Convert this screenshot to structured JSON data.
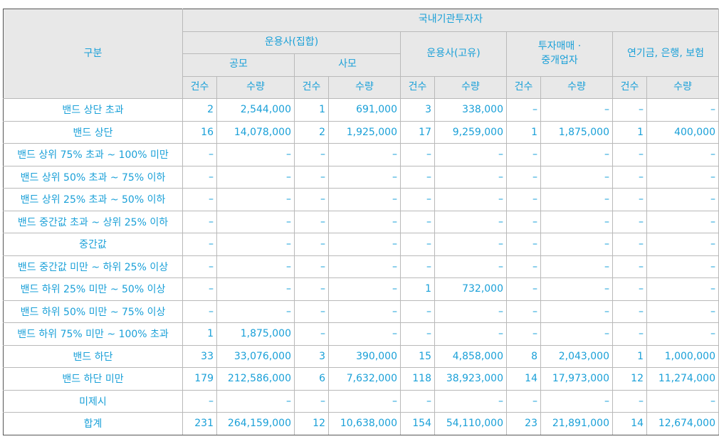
{
  "header": {
    "category": "구분",
    "institution": "국내기관투자자",
    "groups": [
      {
        "label": "운용사(집합)",
        "subs": [
          "공모",
          "사모"
        ]
      },
      {
        "label": "운용사(고유)"
      },
      {
        "label_line1": "투자매매 ·",
        "label_line2": "중개업자"
      },
      {
        "label": "연기금, 은행, 보험"
      }
    ],
    "count_label": "건수",
    "qty_label": "수량"
  },
  "rows": [
    {
      "label": "밴드 상단 초과",
      "values": [
        "2",
        "2,544,000",
        "1",
        "691,000",
        "3",
        "338,000",
        "–",
        "–",
        "–",
        "–"
      ]
    },
    {
      "label": "밴드 상단",
      "values": [
        "16",
        "14,078,000",
        "2",
        "1,925,000",
        "17",
        "9,259,000",
        "1",
        "1,875,000",
        "1",
        "400,000"
      ]
    },
    {
      "label": "밴드 상위 75% 초과 ~ 100% 미만",
      "values": [
        "–",
        "–",
        "–",
        "–",
        "–",
        "–",
        "–",
        "–",
        "–",
        "–"
      ]
    },
    {
      "label": "밴드 상위 50% 초과 ~ 75% 이하",
      "values": [
        "–",
        "–",
        "–",
        "–",
        "–",
        "–",
        "–",
        "–",
        "–",
        "–"
      ]
    },
    {
      "label": "밴드 상위 25% 초과 ~ 50% 이하",
      "values": [
        "–",
        "–",
        "–",
        "–",
        "–",
        "–",
        "–",
        "–",
        "–",
        "–"
      ]
    },
    {
      "label": "밴드 중간값 초과 ~ 상위 25% 이하",
      "values": [
        "–",
        "–",
        "–",
        "–",
        "–",
        "–",
        "–",
        "–",
        "–",
        "–"
      ]
    },
    {
      "label": "중간값",
      "values": [
        "–",
        "–",
        "–",
        "–",
        "–",
        "–",
        "–",
        "–",
        "–",
        "–"
      ]
    },
    {
      "label": "밴드 중간값 미만 ~ 하위 25% 이상",
      "values": [
        "–",
        "–",
        "–",
        "–",
        "–",
        "–",
        "–",
        "–",
        "–",
        "–"
      ]
    },
    {
      "label": "밴드 하위 25% 미만 ~ 50% 이상",
      "values": [
        "–",
        "–",
        "–",
        "–",
        "1",
        "732,000",
        "–",
        "–",
        "–",
        "–"
      ]
    },
    {
      "label": "밴드 하위 50% 미만 ~ 75% 이상",
      "values": [
        "–",
        "–",
        "–",
        "–",
        "–",
        "–",
        "–",
        "–",
        "–",
        "–"
      ]
    },
    {
      "label": "밴드 하위 75% 미만 ~ 100% 초과",
      "values": [
        "1",
        "1,875,000",
        "–",
        "–",
        "–",
        "–",
        "–",
        "–",
        "–",
        "–"
      ]
    },
    {
      "label": "밴드 하단",
      "values": [
        "33",
        "33,076,000",
        "3",
        "390,000",
        "15",
        "4,858,000",
        "8",
        "2,043,000",
        "1",
        "1,000,000"
      ]
    },
    {
      "label": "밴드 하단 미만",
      "values": [
        "179",
        "212,586,000",
        "6",
        "7,632,000",
        "118",
        "38,923,000",
        "14",
        "17,973,000",
        "12",
        "11,274,000"
      ]
    },
    {
      "label": "미제시",
      "values": [
        "–",
        "–",
        "–",
        "–",
        "–",
        "–",
        "–",
        "–",
        "–",
        "–"
      ]
    },
    {
      "label": "합계",
      "values": [
        "231",
        "264,159,000",
        "12",
        "10,638,000",
        "154",
        "54,110,000",
        "23",
        "21,891,000",
        "14",
        "12,674,000"
      ]
    }
  ],
  "colors": {
    "text": "#1aa0d8",
    "header_bg": "#e8e8e8",
    "border": "#b9b9b9"
  }
}
